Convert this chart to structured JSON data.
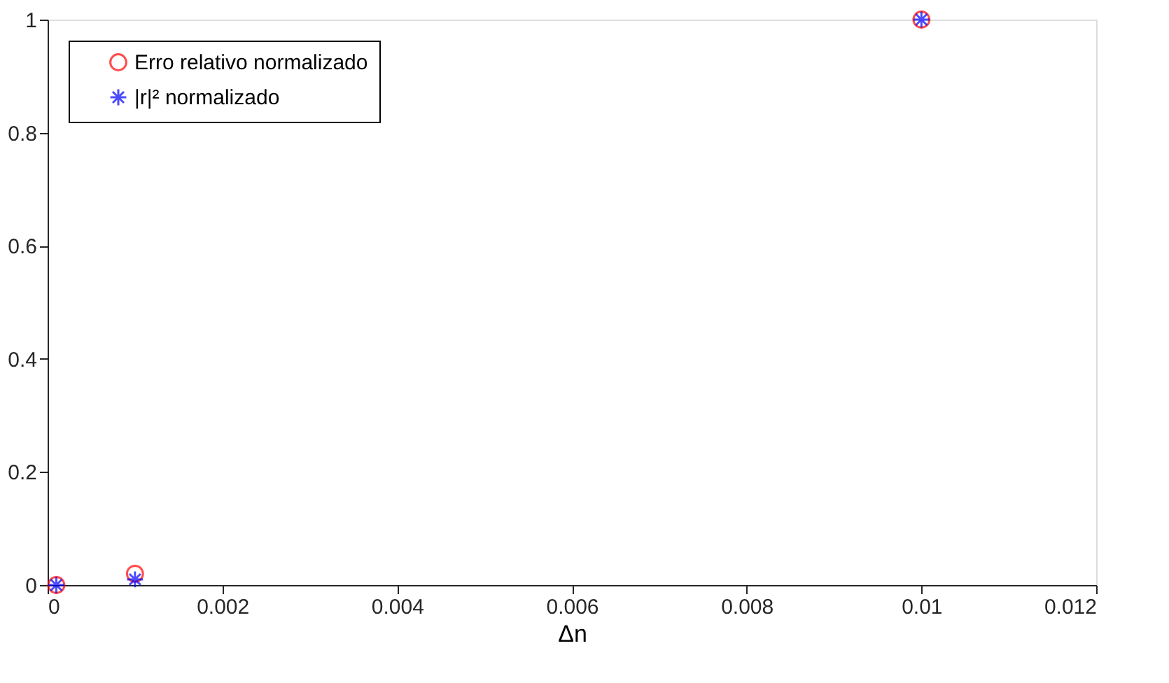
{
  "chart_data": {
    "type": "scatter",
    "xlabel": "Δn",
    "xlim": [
      0,
      0.012
    ],
    "xticks": [
      0,
      0.002,
      0.004,
      0.006,
      0.008,
      0.01,
      0.012
    ],
    "ylim": [
      0,
      1
    ],
    "yticks": [
      0,
      0.2,
      0.4,
      0.6,
      0.8,
      1
    ],
    "grid": false,
    "legend": "top left",
    "series": [
      {
        "name": "Erro relativo normalizado",
        "color": "#ff0000",
        "marker": "circle",
        "x": [
          0.0001,
          0.001,
          0.01
        ],
        "values": [
          0,
          0.02,
          1
        ]
      },
      {
        "name": "|r|² normalizado",
        "color": "#0000ff",
        "marker": "cross",
        "x": [
          0.0001,
          0.001,
          0.01
        ],
        "values": [
          0,
          0.01,
          1
        ]
      }
    ]
  }
}
